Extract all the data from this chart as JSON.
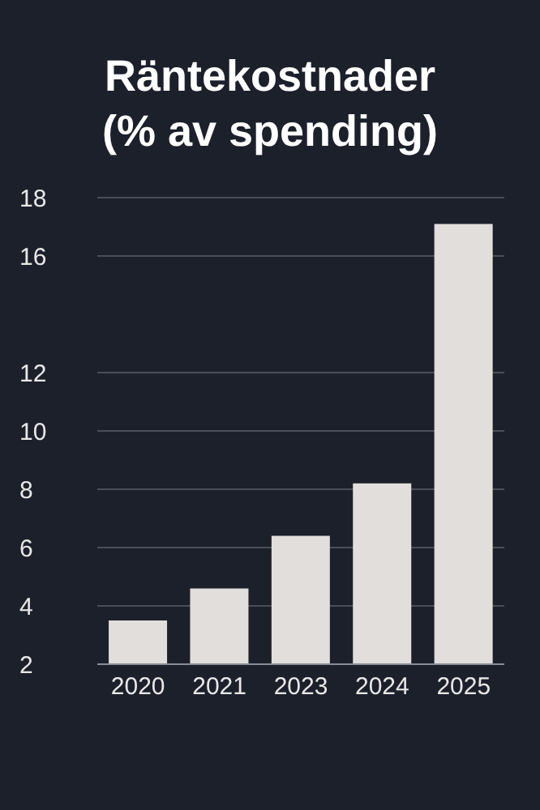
{
  "chart_data": {
    "type": "bar",
    "title": "Räntekostnader",
    "subtitle": "(% av spending)",
    "categories": [
      "2020",
      "2021",
      "2023",
      "2024",
      "2025"
    ],
    "values": [
      3.5,
      4.6,
      6.4,
      8.2,
      17.1
    ],
    "color": "#e2dedb",
    "ylim": [
      2,
      18
    ],
    "yticks": [
      2,
      4,
      6,
      8,
      10,
      12,
      16,
      18
    ],
    "grid": "y"
  }
}
